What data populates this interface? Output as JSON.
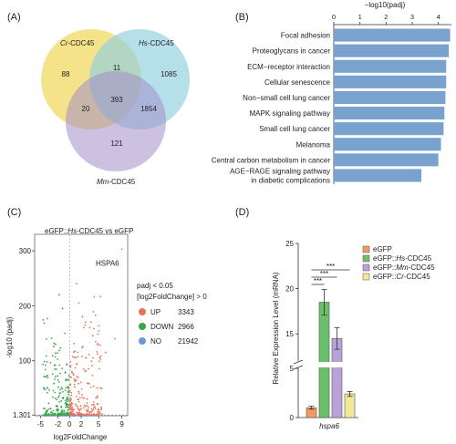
{
  "panel_labels": [
    "(A)",
    "(B)",
    "(C)",
    "(D)"
  ],
  "colors": {
    "cr": "#f3de76",
    "hs": "#8ed0df",
    "mm": "#a48ec8",
    "bar_b": "#7aa2cf",
    "up": "#e8715c",
    "down": "#3aa64a",
    "no": "#6b9ad1",
    "egfp": "#f29a63",
    "hs_bar": "#6bbf6b",
    "mm_bar": "#b9a2d7",
    "cr_bar": "#f3e79a"
  },
  "chart_data": [
    {
      "type": "venn",
      "sets": [
        {
          "name_prefix": "Cr",
          "name_suffix": "-CDC45"
        },
        {
          "name_prefix": "Hs",
          "name_suffix": "-CDC45"
        },
        {
          "name_prefix": "Mm",
          "name_suffix": "-CDC45"
        }
      ],
      "regions": [
        {
          "sets": [
            "Cr"
          ],
          "value": "88"
        },
        {
          "sets": [
            "Cr",
            "Hs"
          ],
          "value": "11"
        },
        {
          "sets": [
            "Hs"
          ],
          "value": "1085"
        },
        {
          "sets": [
            "Cr",
            "Hs",
            "Mm"
          ],
          "value": "393"
        },
        {
          "sets": [
            "Cr",
            "Mm"
          ],
          "value": "20"
        },
        {
          "sets": [
            "Hs",
            "Mm"
          ],
          "value": "1854"
        },
        {
          "sets": [
            "Mm"
          ],
          "value": "121"
        }
      ]
    },
    {
      "type": "bar",
      "orientation": "horizontal",
      "xlabel": "−log10(padj)",
      "xlim": [
        0,
        4.5
      ],
      "xticks": [
        "0",
        "1",
        "2",
        "3",
        "4"
      ],
      "categories": [
        "Focal adhesion",
        "Proteoglycans in cancer",
        "ECM−receptor interaction",
        "Cellular senescence",
        "Non−small cell lung cancer",
        "MAPK signaling pathway",
        "Small cell lung cancer",
        "Melanoma",
        "Central carbon metabolism in cancer",
        "AGE−RAGE signaling pathway in diabetic complications"
      ],
      "category_lines": [
        [
          "Focal adhesion"
        ],
        [
          "Proteoglycans in cancer"
        ],
        [
          "ECM−receptor interaction"
        ],
        [
          "Cellular senescence"
        ],
        [
          "Non−small cell lung cancer"
        ],
        [
          "MAPK signaling pathway"
        ],
        [
          "Small cell lung cancer"
        ],
        [
          "Melanoma"
        ],
        [
          "Central carbon metabolism in cancer"
        ],
        [
          "AGE−RAGE signaling pathway",
          "in diabetic complications"
        ]
      ],
      "values": [
        4.45,
        4.4,
        4.3,
        4.3,
        4.27,
        4.23,
        4.2,
        4.1,
        4.0,
        3.35
      ]
    },
    {
      "type": "scatter",
      "title_prefix": "eGFP::",
      "title_italic": "Hs",
      "title_suffix": "-CDC45 vs eGFP",
      "xlabel": "log2FoldChange",
      "ylabel": "-log10 (padj)",
      "xticks": [
        "-5",
        "-2",
        "0",
        "2",
        "5",
        "9"
      ],
      "xtick_values": [
        -5,
        -2,
        0,
        2,
        5,
        9
      ],
      "yticks": [
        "1.301",
        "100",
        "200",
        "300"
      ],
      "ytick_values": [
        1.301,
        100,
        200,
        300
      ],
      "xlim": [
        -6,
        10
      ],
      "ylim": [
        0,
        330
      ],
      "annotation": {
        "text": "HSPA6",
        "x": 9,
        "y": 303
      },
      "legend_title_lines": [
        "padj < 0.05",
        "[log2FoldChange] > 0"
      ],
      "legend": [
        {
          "label": "UP",
          "count": "3343"
        },
        {
          "label": "DOWN",
          "count": "2966"
        },
        {
          "label": "NO",
          "count": "21942"
        }
      ]
    },
    {
      "type": "bar",
      "ylabel": "Relative Expression Level (mRNA)",
      "yticks_upper": [
        "15",
        "20",
        "25"
      ],
      "yticks_lower": [
        "0",
        "5"
      ],
      "categories": [
        "hspa6"
      ],
      "significance": [
        "***",
        "***",
        "***"
      ],
      "series": [
        {
          "name_prefix": "eGFP",
          "name_italic": "",
          "name_suffix": "",
          "value": 1.0,
          "error": 0.15
        },
        {
          "name_prefix": "eGFP::",
          "name_italic": "Hs",
          "name_suffix": "-CDC45",
          "value": 18.5,
          "error": 1.4
        },
        {
          "name_prefix": "eGFP::",
          "name_italic": "Mm",
          "name_suffix": "-CDC45",
          "value": 14.5,
          "error": 1.2
        },
        {
          "name_prefix": "eGFP::",
          "name_italic": "Cr",
          "name_suffix": "-CDC45",
          "value": 2.4,
          "error": 0.25
        }
      ]
    }
  ]
}
